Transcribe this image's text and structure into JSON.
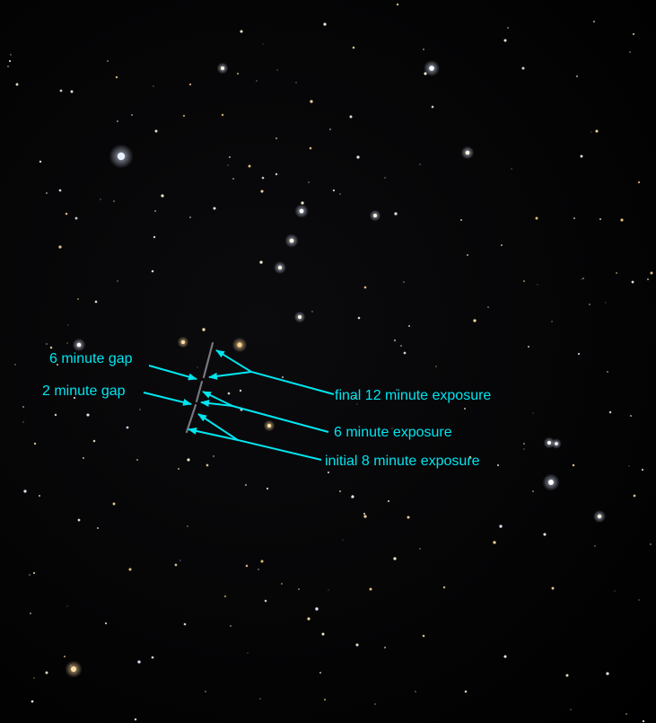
{
  "image": {
    "subject": "star-field",
    "annotation_color": "#00e5f0",
    "star_colors": [
      "#ffffff",
      "#fff6dc",
      "#ffe2a6",
      "#ffd38a",
      "#e8eeff"
    ],
    "streak_color": "#8a8a94"
  },
  "annotations": {
    "gap_6": "6 minute gap",
    "gap_2": "2 minute gap",
    "final": "final 12 minute exposure",
    "mid": "6 minute exposure",
    "initial": "initial 8 minute exposure"
  }
}
